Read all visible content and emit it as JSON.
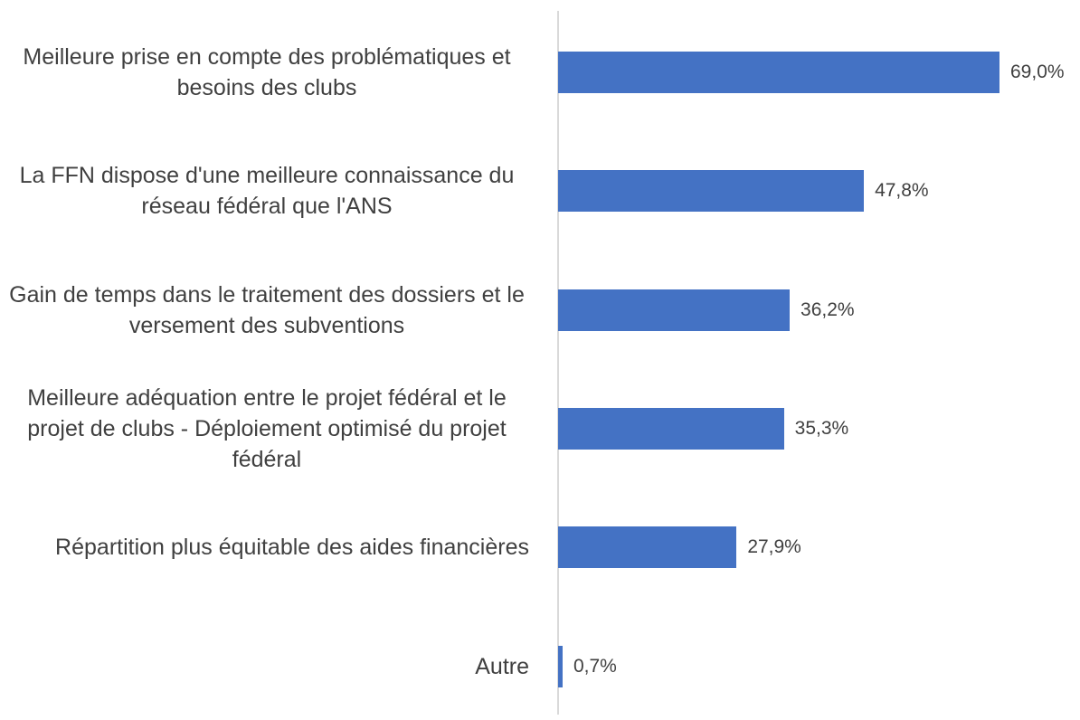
{
  "chart_data": {
    "type": "barh",
    "categories": [
      "Meilleure prise en compte des problématiques et besoins des clubs",
      "La FFN dispose d'une meilleure connaissance du réseau fédéral que l'ANS",
      "Gain de temps dans le traitement des dossiers et le versement des subventions",
      "Meilleure adéquation entre le projet fédéral et le projet de clubs - Déploiement optimisé du projet fédéral",
      "Répartition plus équitable des aides financières",
      "Autre"
    ],
    "values": [
      69.0,
      47.8,
      36.2,
      35.3,
      27.9,
      0.7
    ],
    "value_labels": [
      "69,0%",
      "47,8%",
      "36,2%",
      "35,3%",
      "27,9%",
      "0,7%"
    ],
    "color": "#4472c4",
    "xlim": [
      0,
      69
    ]
  }
}
